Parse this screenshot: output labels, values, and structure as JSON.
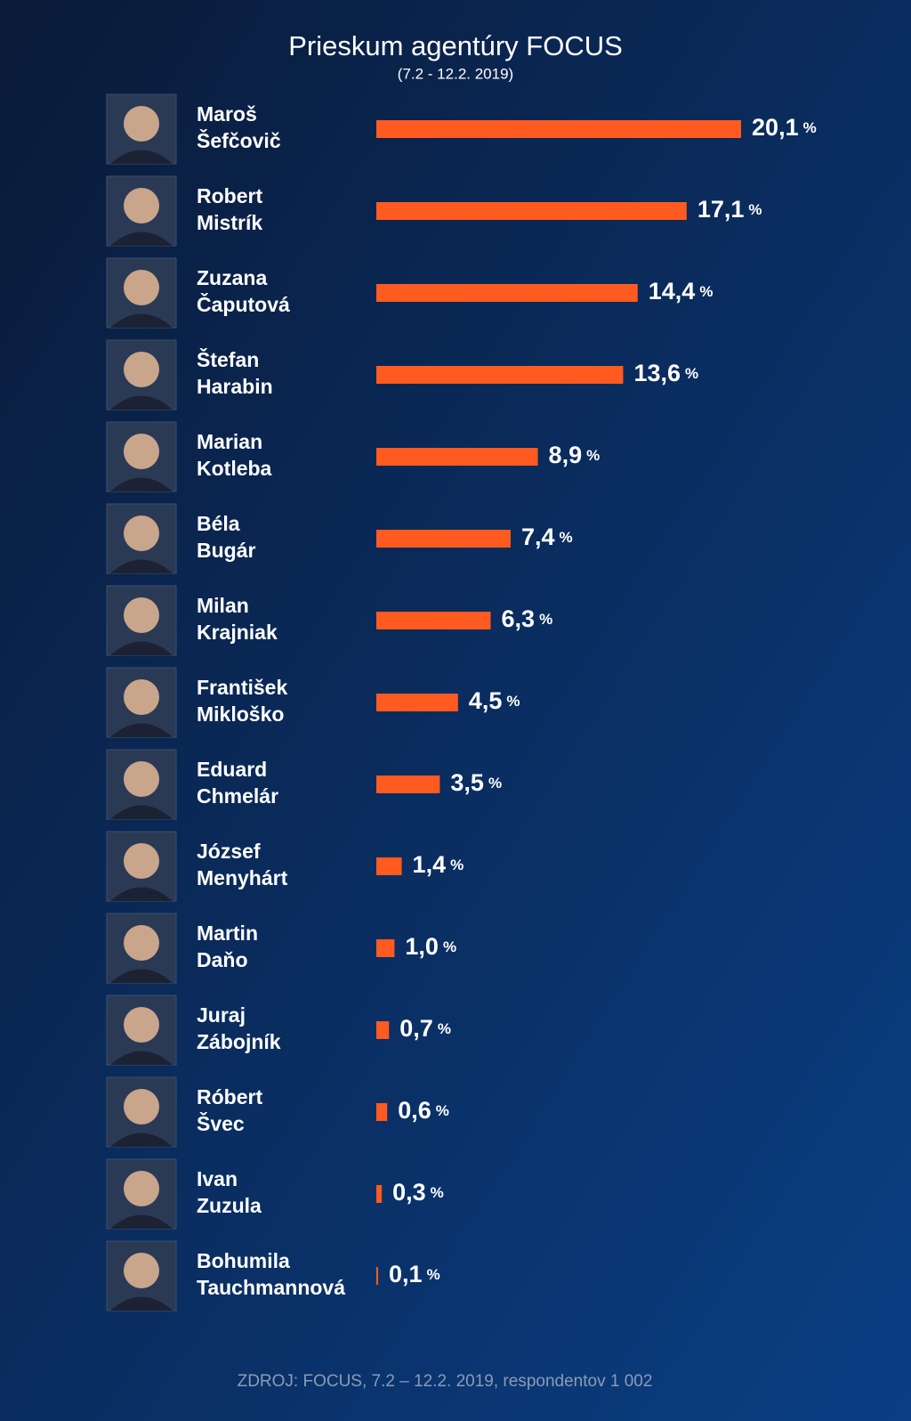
{
  "chart_data": {
    "type": "bar",
    "orientation": "horizontal",
    "title": "Prieskum agentúry FOCUS",
    "subtitle": "(7.2 - 12.2. 2019)",
    "source": "ZDROJ: FOCUS, 7.2 – 12.2. 2019, respondentov 1 002",
    "categories": [
      [
        "Maroš",
        "Šefčovič"
      ],
      [
        "Robert",
        "Mistrík"
      ],
      [
        "Zuzana",
        "Čaputová"
      ],
      [
        "Štefan",
        "Harabin"
      ],
      [
        "Marian",
        "Kotleba"
      ],
      [
        "Béla",
        "Bugár"
      ],
      [
        "Milan",
        "Krajniak"
      ],
      [
        "František",
        "Mikloško"
      ],
      [
        "Eduard",
        "Chmelár"
      ],
      [
        "József",
        "Menyhárt"
      ],
      [
        "Martin",
        "Daňo"
      ],
      [
        "Juraj",
        "Zábojník"
      ],
      [
        "Róbert",
        "Švec"
      ],
      [
        "Ivan",
        "Zuzula"
      ],
      [
        "Bohumila",
        "Tauchmannová"
      ]
    ],
    "values": [
      20.1,
      17.1,
      14.4,
      13.6,
      8.9,
      7.4,
      6.3,
      4.5,
      3.5,
      1.4,
      1.0,
      0.7,
      0.6,
      0.3,
      0.1
    ],
    "value_labels": [
      "20,1",
      "17,1",
      "14,4",
      "13,6",
      "8,9",
      "7,4",
      "6,3",
      "4,5",
      "3,5",
      "1,4",
      "1,0",
      "0,7",
      "0,6",
      "0,3",
      "0,1"
    ],
    "unit": "%",
    "color": "#ff5a1f"
  }
}
